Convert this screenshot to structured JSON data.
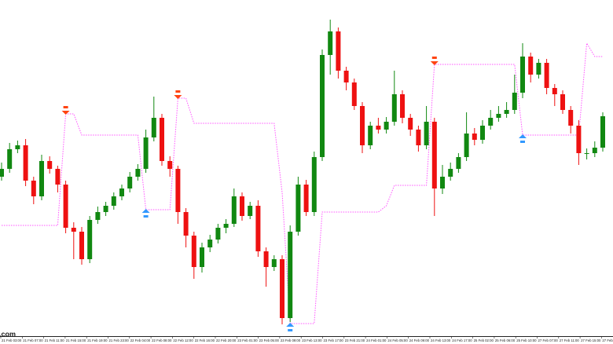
{
  "chart_data": {
    "type": "candlestick",
    "ylim": [
      0,
      425
    ],
    "up_color": "#118811",
    "down_color": "#ee1111",
    "stop_color": "#ff55ff",
    "buy_color": "#3399ff",
    "sell_color": "#ff4411",
    "open": [
      200,
      210,
      235,
      240,
      195,
      175,
      220,
      210,
      190,
      135,
      130,
      95,
      145,
      155,
      163,
      175,
      185,
      200,
      210,
      250,
      275,
      220,
      210,
      155,
      125,
      85,
      110,
      120,
      135,
      140,
      175,
      150,
      163,
      105,
      85,
      95,
      20,
      130,
      190,
      155,
      225,
      355,
      385,
      335,
      320,
      290,
      240,
      265,
      260,
      270,
      305,
      275,
      260,
      240,
      270,
      185,
      200,
      210,
      225,
      255,
      247,
      265,
      275,
      280,
      285,
      307,
      353,
      330,
      345,
      313,
      305,
      285,
      265,
      230,
      230,
      237
    ],
    "high": [
      218,
      243,
      246,
      248,
      200,
      228,
      226,
      214,
      195,
      142,
      136,
      150,
      162,
      168,
      180,
      190,
      206,
      216,
      260,
      302,
      280,
      226,
      214,
      160,
      130,
      116,
      126,
      140,
      146,
      185,
      180,
      168,
      170,
      110,
      100,
      100,
      138,
      200,
      196,
      232,
      362,
      400,
      390,
      340,
      325,
      295,
      270,
      275,
      276,
      335,
      310,
      280,
      265,
      290,
      275,
      215,
      218,
      230,
      282,
      262,
      272,
      285,
      290,
      295,
      330,
      370,
      358,
      350,
      350,
      318,
      310,
      290,
      272,
      236,
      245,
      282
    ],
    "low": [
      195,
      205,
      230,
      188,
      165,
      170,
      204,
      180,
      128,
      95,
      88,
      90,
      140,
      150,
      158,
      170,
      180,
      195,
      205,
      245,
      214,
      200,
      140,
      110,
      70,
      78,
      104,
      115,
      128,
      136,
      144,
      146,
      98,
      60,
      80,
      12,
      15,
      125,
      150,
      150,
      220,
      330,
      325,
      310,
      285,
      230,
      235,
      255,
      255,
      265,
      268,
      252,
      232,
      235,
      150,
      178,
      195,
      205,
      220,
      240,
      242,
      260,
      270,
      275,
      280,
      300,
      320,
      325,
      305,
      290,
      280,
      255,
      215,
      222,
      225,
      232
    ],
    "close": [
      210,
      235,
      240,
      195,
      175,
      220,
      210,
      190,
      135,
      130,
      95,
      145,
      155,
      163,
      175,
      185,
      200,
      210,
      250,
      275,
      220,
      210,
      155,
      125,
      85,
      110,
      120,
      135,
      140,
      175,
      150,
      163,
      105,
      85,
      95,
      20,
      130,
      190,
      155,
      225,
      355,
      385,
      335,
      320,
      290,
      240,
      265,
      260,
      270,
      305,
      275,
      260,
      240,
      270,
      185,
      200,
      210,
      225,
      255,
      247,
      265,
      275,
      280,
      285,
      307,
      353,
      330,
      345,
      313,
      305,
      285,
      265,
      230,
      230,
      237,
      277
    ],
    "stop": [
      138,
      138,
      138,
      138,
      138,
      138,
      138,
      138,
      280,
      280,
      253,
      253,
      253,
      253,
      253,
      253,
      253,
      253,
      158,
      158,
      158,
      158,
      300,
      300,
      268,
      268,
      268,
      268,
      268,
      268,
      268,
      268,
      268,
      268,
      268,
      180,
      13,
      13,
      13,
      13,
      155,
      155,
      155,
      155,
      155,
      155,
      155,
      155,
      163,
      189,
      189,
      189,
      189,
      189,
      343,
      343,
      343,
      343,
      343,
      343,
      343,
      343,
      343,
      343,
      343,
      253,
      253,
      253,
      253,
      253,
      253,
      253,
      253,
      370,
      353,
      353
    ],
    "x_labels": [
      "21 Feb 03:00",
      "21 Feb 07:00",
      "21 Feb 11:00",
      "21 Feb 15:00",
      "21 Feb 19:00",
      "21 Feb 23:00",
      "22 Feb 04:00",
      "22 Feb 08:00",
      "22 Feb 12:00",
      "22 Feb 16:00",
      "22 Feb 20:00",
      "23 Feb 01:00",
      "23 Feb 05:00",
      "23 Feb 09:00",
      "23 Feb 13:00",
      "23 Feb 17:00",
      "23 Feb 21:00",
      "24 Feb 01:00",
      "24 Feb 05:00",
      "24 Feb 09:00",
      "24 Feb 13:00",
      "24 Feb 17:00",
      "25 Feb 02:00",
      "25 Feb 06:00",
      "25 Feb 10:00",
      "27 Feb 07:00",
      "27 Feb 11:00",
      "27 Feb 15:00",
      "27 Feb 23:00"
    ],
    "watermark": "s.com"
  }
}
